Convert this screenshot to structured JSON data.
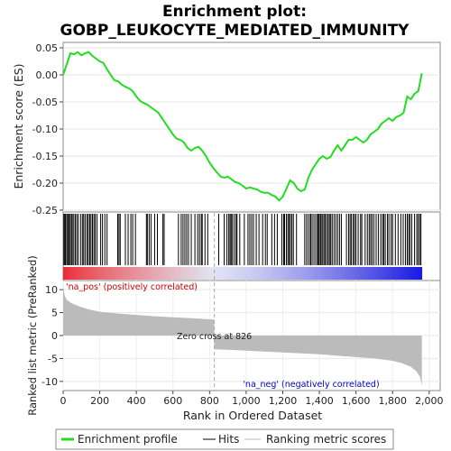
{
  "chart_data": [
    {
      "type": "line",
      "title": "Enrichment plot:",
      "subtitle": "GOBP_LEUKOCYTE_MEDIATED_IMMUNITY",
      "ylabel": "Enrichment score (ES)",
      "ylim": [
        -0.25,
        0.06
      ],
      "yticks": [
        "0.05",
        "0.00",
        "-0.05",
        "-0.10",
        "-0.15",
        "-0.20",
        "-0.25"
      ],
      "grid": true,
      "series": [
        {
          "name": "Enrichment profile",
          "color": "#22dd22",
          "x": [
            0,
            20,
            40,
            60,
            80,
            100,
            120,
            140,
            160,
            180,
            200,
            220,
            240,
            260,
            280,
            300,
            320,
            340,
            360,
            380,
            400,
            420,
            440,
            460,
            480,
            500,
            520,
            540,
            560,
            580,
            600,
            620,
            640,
            660,
            680,
            700,
            720,
            740,
            760,
            780,
            800,
            820,
            840,
            860,
            880,
            900,
            920,
            940,
            960,
            980,
            1000,
            1020,
            1040,
            1060,
            1080,
            1100,
            1120,
            1140,
            1160,
            1180,
            1200,
            1220,
            1240,
            1260,
            1280,
            1300,
            1320,
            1340,
            1360,
            1380,
            1400,
            1420,
            1440,
            1460,
            1480,
            1500,
            1520,
            1540,
            1560,
            1580,
            1600,
            1620,
            1640,
            1660,
            1680,
            1700,
            1720,
            1740,
            1760,
            1780,
            1800,
            1820,
            1840,
            1860,
            1880,
            1900,
            1920,
            1940,
            1960
          ],
          "y": [
            0.0,
            0.02,
            0.04,
            0.038,
            0.042,
            0.036,
            0.04,
            0.042,
            0.035,
            0.03,
            0.025,
            0.022,
            0.01,
            0.0,
            -0.01,
            -0.012,
            -0.018,
            -0.022,
            -0.025,
            -0.03,
            -0.04,
            -0.048,
            -0.052,
            -0.055,
            -0.06,
            -0.065,
            -0.07,
            -0.08,
            -0.09,
            -0.1,
            -0.11,
            -0.118,
            -0.12,
            -0.125,
            -0.135,
            -0.14,
            -0.135,
            -0.133,
            -0.14,
            -0.15,
            -0.162,
            -0.172,
            -0.18,
            -0.188,
            -0.19,
            -0.188,
            -0.193,
            -0.198,
            -0.2,
            -0.205,
            -0.21,
            -0.208,
            -0.21,
            -0.212,
            -0.216,
            -0.218,
            -0.218,
            -0.222,
            -0.225,
            -0.232,
            -0.225,
            -0.21,
            -0.195,
            -0.2,
            -0.21,
            -0.215,
            -0.212,
            -0.19,
            -0.175,
            -0.165,
            -0.155,
            -0.15,
            -0.155,
            -0.152,
            -0.14,
            -0.13,
            -0.14,
            -0.13,
            -0.12,
            -0.12,
            -0.115,
            -0.12,
            -0.125,
            -0.12,
            -0.11,
            -0.105,
            -0.1,
            -0.09,
            -0.085,
            -0.08,
            -0.085,
            -0.078,
            -0.075,
            -0.07,
            -0.04,
            -0.045,
            -0.035,
            -0.03,
            0.003
          ]
        }
      ]
    },
    {
      "type": "bar",
      "title": "",
      "ylabel": "Ranked list metric (PreRanked)",
      "xlabel": "Rank in Ordered Dataset",
      "xlim": [
        0,
        2060
      ],
      "xticks": [
        "0",
        "200",
        "400",
        "600",
        "800",
        "1,000",
        "1,200",
        "1,400",
        "1,600",
        "1,800",
        "2,000"
      ],
      "ylim": [
        -12,
        12
      ],
      "yticks": [
        "10",
        "5",
        "0",
        "-5",
        "-10"
      ],
      "zero_cross": 826,
      "zero_cross_label": "Zero cross at 826",
      "pos_label": "'na_pos' (positively correlated)",
      "neg_label": "'na_neg' (negatively correlated)",
      "x": [
        0,
        5,
        10,
        20,
        40,
        60,
        100,
        150,
        200,
        300,
        400,
        500,
        600,
        700,
        825,
        826,
        900,
        1000,
        1100,
        1200,
        1300,
        1400,
        1500,
        1600,
        1700,
        1800,
        1850,
        1900,
        1930,
        1950,
        1960
      ],
      "values": [
        11.0,
        9.5,
        8.5,
        7.8,
        7.2,
        6.8,
        6.2,
        5.6,
        5.2,
        4.8,
        4.5,
        4.2,
        4.0,
        3.8,
        3.5,
        -3.0,
        -3.1,
        -3.3,
        -3.5,
        -3.7,
        -3.9,
        -4.1,
        -4.4,
        -4.7,
        -5.0,
        -5.5,
        -6.0,
        -6.8,
        -7.8,
        -9.0,
        -11.0
      ]
    }
  ],
  "hits": [
    4,
    9,
    13,
    20,
    26,
    31,
    38,
    45,
    50,
    58,
    66,
    74,
    82,
    95,
    105,
    112,
    120,
    130,
    137,
    145,
    152,
    160,
    168,
    175,
    185,
    205,
    215,
    228,
    240,
    298,
    305,
    312,
    340,
    355,
    370,
    380,
    395,
    455,
    460,
    470,
    480,
    500,
    515,
    545,
    552,
    630,
    645,
    655,
    665,
    675,
    685,
    700,
    720,
    735,
    745,
    755,
    760,
    775,
    790,
    850,
    880,
    895,
    905,
    912,
    918,
    925,
    935,
    945,
    950,
    965,
    990,
    1010,
    1020,
    1030,
    1040,
    1055,
    1070,
    1090,
    1105,
    1115,
    1140,
    1155,
    1170,
    1195,
    1205,
    1210,
    1220,
    1228,
    1235,
    1242,
    1250,
    1258,
    1275,
    1320,
    1330,
    1340,
    1350,
    1355,
    1365,
    1375,
    1385,
    1392,
    1398,
    1405,
    1410,
    1418,
    1425,
    1432,
    1440,
    1448,
    1455,
    1462,
    1470,
    1480,
    1490,
    1500,
    1510,
    1520,
    1548,
    1560,
    1568,
    1575,
    1585,
    1592,
    1600,
    1612,
    1625,
    1632,
    1650,
    1662,
    1672,
    1680,
    1688,
    1698,
    1710,
    1722,
    1735,
    1745,
    1752,
    1760,
    1772,
    1780,
    1792,
    1800,
    1815,
    1830,
    1845,
    1858,
    1870,
    1880,
    1888,
    1895,
    1905,
    1920,
    1932,
    1940,
    1948,
    1955
  ],
  "legend": {
    "items": [
      {
        "label": "Enrichment profile",
        "kind": "line",
        "color": "#22dd22"
      },
      {
        "label": "Hits",
        "kind": "line",
        "color": "#000000"
      },
      {
        "label": "Ranking metric scores",
        "kind": "line",
        "color": "#bbbbbb"
      }
    ]
  }
}
